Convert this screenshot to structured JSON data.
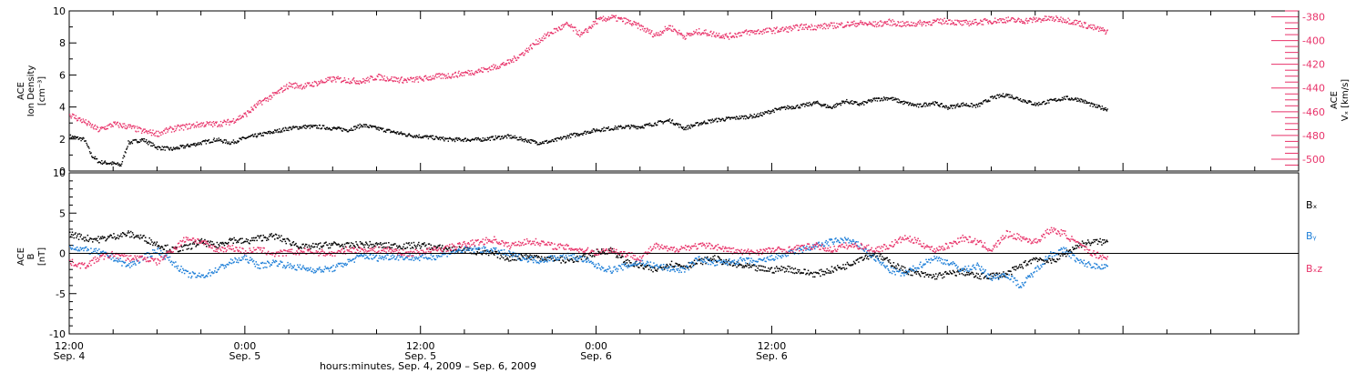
{
  "chart_data": [
    {
      "type": "scatter",
      "panel": "top",
      "ylabel_left": [
        "ACE",
        "Ion Density",
        "[cm⁻³]"
      ],
      "ylabel_right": [
        "ACE",
        "Vₓ [km/s]"
      ],
      "ylim_left": [
        0,
        10
      ],
      "ylim_right": [
        -510,
        -375
      ],
      "yticks_left": [
        "0",
        "2",
        "4",
        "6",
        "8",
        "10"
      ],
      "yticks_right": [
        "-380",
        "-400",
        "-420",
        "-440",
        "-460",
        "-480",
        "-500"
      ],
      "series": [
        {
          "axis": "left",
          "color": "#000000",
          "x": [
            12,
            13,
            13.5,
            14,
            15,
            15.5,
            16,
            17,
            18,
            19,
            20,
            21,
            22,
            23,
            24,
            25,
            26,
            27,
            28,
            29,
            30,
            31,
            32,
            33,
            34,
            35,
            36,
            37,
            38,
            39,
            40,
            41,
            42,
            43,
            44,
            45,
            46,
            47,
            48,
            49,
            50,
            51,
            52,
            53,
            54,
            55,
            56,
            57,
            58,
            59,
            60,
            61,
            62,
            63,
            64,
            65,
            66,
            67,
            68,
            69,
            70,
            71,
            72,
            73,
            74,
            75,
            76,
            77,
            78,
            79,
            80,
            81,
            82,
            82.9
          ],
          "y": [
            2.2,
            2.0,
            1.0,
            0.6,
            0.5,
            0.4,
            1.8,
            2.0,
            1.5,
            1.4,
            1.6,
            1.8,
            2.0,
            1.8,
            2.1,
            2.3,
            2.5,
            2.7,
            2.8,
            2.8,
            2.7,
            2.6,
            2.9,
            2.7,
            2.5,
            2.3,
            2.2,
            2.1,
            2.0,
            2.0,
            2.0,
            2.1,
            2.2,
            2.0,
            1.8,
            1.9,
            2.2,
            2.4,
            2.6,
            2.7,
            2.8,
            2.8,
            3.0,
            3.2,
            2.7,
            3.0,
            3.2,
            3.3,
            3.4,
            3.5,
            3.8,
            4.0,
            4.1,
            4.3,
            4.0,
            4.4,
            4.2,
            4.5,
            4.6,
            4.3,
            4.1,
            4.3,
            4.0,
            4.2,
            4.1,
            4.6,
            4.8,
            4.5,
            4.2,
            4.4,
            4.6,
            4.5,
            4.1,
            3.9
          ]
        },
        {
          "axis": "right",
          "color": "#e8336a",
          "x": [
            12,
            13,
            14,
            15,
            16,
            17,
            18,
            19,
            20,
            21,
            22,
            23,
            24,
            25,
            26,
            27,
            28,
            29,
            30,
            31,
            32,
            33,
            34,
            35,
            36,
            37,
            38,
            39,
            40,
            41,
            42,
            43,
            44,
            45,
            46,
            47,
            48,
            49,
            50,
            51,
            52,
            53,
            54,
            55,
            56,
            57,
            58,
            59,
            60,
            61,
            62,
            63,
            64,
            65,
            66,
            67,
            68,
            69,
            70,
            71,
            72,
            73,
            74,
            75,
            76,
            77,
            78,
            79,
            80,
            81,
            82,
            82.9
          ],
          "y": [
            -462,
            -468,
            -475,
            -470,
            -472,
            -476,
            -478,
            -474,
            -472,
            -470,
            -470,
            -468,
            -462,
            -452,
            -445,
            -437,
            -438,
            -435,
            -432,
            -433,
            -434,
            -430,
            -432,
            -433,
            -432,
            -430,
            -429,
            -427,
            -425,
            -422,
            -418,
            -410,
            -400,
            -392,
            -386,
            -395,
            -383,
            -380,
            -383,
            -388,
            -395,
            -388,
            -396,
            -392,
            -394,
            -396,
            -393,
            -392,
            -391,
            -390,
            -388,
            -388,
            -387,
            -386,
            -385,
            -386,
            -384,
            -386,
            -385,
            -384,
            -383,
            -385,
            -384,
            -383,
            -382,
            -383,
            -382,
            -381,
            -382,
            -385,
            -389,
            -392
          ]
        }
      ]
    },
    {
      "type": "line",
      "panel": "bottom",
      "ylabel_left": [
        "ACE",
        "B",
        "[nT]"
      ],
      "ylim": [
        -10,
        10
      ],
      "yticks": [
        "-10",
        "-5",
        "0",
        "5",
        "10"
      ],
      "series": [
        {
          "name": "Bₓ",
          "color": "#000000",
          "x": [
            12,
            13,
            14,
            15,
            16,
            17,
            18,
            19,
            20,
            21,
            22,
            23,
            24,
            25,
            26,
            27,
            28,
            29,
            30,
            31,
            32,
            33,
            34,
            35,
            36,
            37,
            38,
            39,
            40,
            41,
            42,
            43,
            44,
            45,
            46,
            47,
            48,
            49,
            50,
            51,
            52,
            53,
            54,
            55,
            56,
            57,
            58,
            59,
            60,
            61,
            62,
            63,
            64,
            65,
            66,
            67,
            68,
            69,
            70,
            71,
            72,
            73,
            74,
            75,
            76,
            77,
            78,
            79,
            80,
            81,
            82,
            82.9
          ],
          "y": [
            2.5,
            2.0,
            1.8,
            2.2,
            2.5,
            2.0,
            1.2,
            0.5,
            0.8,
            1.5,
            1.0,
            1.8,
            1.5,
            2.0,
            2.2,
            1.5,
            0.8,
            1.0,
            1.2,
            1.0,
            1.2,
            1.1,
            1.0,
            1.0,
            1.1,
            0.8,
            0.6,
            0.5,
            0.2,
            0.0,
            -0.5,
            -0.3,
            -0.4,
            -0.6,
            -0.8,
            -0.5,
            0.2,
            0.5,
            -1.0,
            -1.5,
            -2.0,
            -1.2,
            -1.5,
            -1.0,
            -0.5,
            -1.2,
            -1.5,
            -1.8,
            -2.0,
            -1.8,
            -2.2,
            -2.5,
            -2.0,
            -1.5,
            -0.5,
            0.0,
            -1.0,
            -2.0,
            -2.5,
            -2.8,
            -2.5,
            -2.2,
            -2.8,
            -2.7,
            -2.5,
            -1.5,
            -0.5,
            -1.0,
            0.0,
            1.2,
            1.5,
            1.5
          ]
        },
        {
          "name": "Bᵧ",
          "color": "#1e7fd8",
          "x": [
            12,
            13,
            14,
            15,
            16,
            17,
            18,
            19,
            20,
            21,
            22,
            23,
            24,
            25,
            26,
            27,
            28,
            29,
            30,
            31,
            32,
            33,
            34,
            35,
            36,
            37,
            38,
            39,
            40,
            41,
            42,
            43,
            44,
            45,
            46,
            47,
            48,
            49,
            50,
            51,
            52,
            53,
            54,
            55,
            56,
            57,
            58,
            59,
            60,
            61,
            62,
            63,
            64,
            65,
            66,
            67,
            68,
            69,
            70,
            71,
            72,
            73,
            74,
            75,
            76,
            77,
            78,
            79,
            80,
            81,
            82,
            82.9
          ],
          "y": [
            1.0,
            0.5,
            0.2,
            -0.5,
            -1.5,
            -0.5,
            0.5,
            -1.0,
            -2.5,
            -2.8,
            -2.0,
            -1.0,
            -0.5,
            -1.5,
            -1.0,
            -1.5,
            -1.8,
            -2.0,
            -1.8,
            -1.0,
            -0.2,
            -0.5,
            -0.3,
            -0.4,
            -0.5,
            -0.3,
            0.2,
            0.5,
            0.6,
            0.4,
            0.0,
            -0.5,
            -0.8,
            -0.5,
            -0.2,
            -0.6,
            -1.5,
            -2.0,
            -1.5,
            -1.0,
            -1.5,
            -1.8,
            -2.0,
            -0.5,
            -1.2,
            -1.0,
            -0.8,
            -1.0,
            -0.5,
            0.0,
            0.5,
            1.0,
            1.5,
            1.8,
            1.0,
            -0.5,
            -2.0,
            -2.5,
            -1.5,
            -0.5,
            -1.0,
            -2.0,
            -1.5,
            -3.0,
            -2.5,
            -4.0,
            -2.0,
            0.0,
            0.5,
            -1.0,
            -1.5,
            -1.5
          ]
        },
        {
          "name": "Bₓz",
          "color": "#e8336a",
          "x": [
            12,
            13,
            14,
            15,
            16,
            17,
            18,
            19,
            20,
            21,
            22,
            23,
            24,
            25,
            26,
            27,
            28,
            29,
            30,
            31,
            32,
            33,
            34,
            35,
            36,
            37,
            38,
            39,
            40,
            41,
            42,
            43,
            44,
            45,
            46,
            47,
            48,
            49,
            50,
            51,
            52,
            53,
            54,
            55,
            56,
            57,
            58,
            59,
            60,
            61,
            62,
            63,
            64,
            65,
            66,
            67,
            68,
            69,
            70,
            71,
            72,
            73,
            74,
            75,
            76,
            77,
            78,
            79,
            80,
            81,
            82,
            82.9
          ],
          "y": [
            -1.0,
            -1.5,
            -0.5,
            0.0,
            -0.5,
            -0.5,
            -1.0,
            0.5,
            2.0,
            1.5,
            0.5,
            0.8,
            0.3,
            0.5,
            0.0,
            0.2,
            0.3,
            0.2,
            0.0,
            0.5,
            0.5,
            0.5,
            0.5,
            0.0,
            0.3,
            0.5,
            0.8,
            1.2,
            1.5,
            1.8,
            1.0,
            1.5,
            1.5,
            1.0,
            0.8,
            0.5,
            0.2,
            0.5,
            0.0,
            -0.5,
            1.0,
            0.5,
            0.8,
            1.0,
            1.0,
            0.5,
            0.2,
            0.3,
            0.5,
            0.5,
            0.8,
            1.0,
            0.5,
            1.0,
            1.0,
            0.5,
            1.0,
            2.0,
            1.5,
            0.5,
            1.0,
            2.0,
            1.5,
            0.5,
            2.5,
            2.0,
            1.5,
            3.0,
            2.5,
            1.0,
            0.0,
            -0.5
          ]
        }
      ]
    }
  ],
  "xaxis": {
    "title": "hours:minutes, Sep.  4, 2009 – Sep.  6, 2009",
    "range_hours": [
      12,
      96
    ],
    "labeled_ticks": [
      {
        "time": "12:00",
        "date": "Sep. 4",
        "hour": 12
      },
      {
        "time": "0:00",
        "date": "Sep. 5",
        "hour": 24
      },
      {
        "time": "12:00",
        "date": "Sep. 5",
        "hour": 36
      },
      {
        "time": "0:00",
        "date": "Sep. 6",
        "hour": 48
      },
      {
        "time": "12:00",
        "date": "Sep. 6",
        "hour": 60
      }
    ]
  }
}
